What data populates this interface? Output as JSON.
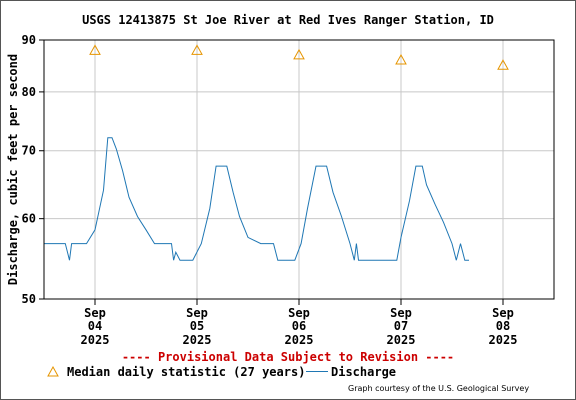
{
  "chart_data": {
    "type": "line",
    "title": "USGS 12413875 St Joe River at Red Ives Ranger Station, ID",
    "ylabel": "Discharge, cubic feet per second",
    "xlabel": "",
    "y_scale": "log",
    "ylim": [
      50,
      90
    ],
    "y_ticks": [
      "50",
      "60",
      "70",
      "80",
      "90"
    ],
    "x_range": [
      "2025-09-03T12:00",
      "2025-09-08T12:00"
    ],
    "x_ticks": [
      {
        "month": "Sep",
        "day": "04",
        "year": "2025"
      },
      {
        "month": "Sep",
        "day": "05",
        "year": "2025"
      },
      {
        "month": "Sep",
        "day": "06",
        "year": "2025"
      },
      {
        "month": "Sep",
        "day": "07",
        "year": "2025"
      },
      {
        "month": "Sep",
        "day": "08",
        "year": "2025"
      }
    ],
    "grid": true,
    "series": [
      {
        "name": "Discharge",
        "color": "#1f77b4",
        "points": [
          [
            "2025-09-03T12:00",
            56.7
          ],
          [
            "2025-09-03T15:00",
            56.7
          ],
          [
            "2025-09-03T17:00",
            56.7
          ],
          [
            "2025-09-03T18:00",
            54.6
          ],
          [
            "2025-09-03T18:30",
            56.7
          ],
          [
            "2025-09-03T22:00",
            56.7
          ],
          [
            "2025-09-04T00:00",
            58.5
          ],
          [
            "2025-09-04T02:00",
            64.0
          ],
          [
            "2025-09-04T03:00",
            72.1
          ],
          [
            "2025-09-04T04:00",
            72.1
          ],
          [
            "2025-09-04T05:00",
            70.3
          ],
          [
            "2025-09-04T06:30",
            66.9
          ],
          [
            "2025-09-04T08:00",
            63.0
          ],
          [
            "2025-09-04T10:00",
            60.3
          ],
          [
            "2025-09-04T12:00",
            58.5
          ],
          [
            "2025-09-04T14:00",
            56.7
          ],
          [
            "2025-09-04T18:00",
            56.7
          ],
          [
            "2025-09-04T18:30",
            54.6
          ],
          [
            "2025-09-04T19:00",
            55.6
          ],
          [
            "2025-09-04T20:00",
            54.6
          ],
          [
            "2025-09-04T23:00",
            54.6
          ],
          [
            "2025-09-05T01:00",
            56.7
          ],
          [
            "2025-09-05T03:00",
            61.4
          ],
          [
            "2025-09-05T04:30",
            67.6
          ],
          [
            "2025-09-05T07:00",
            67.6
          ],
          [
            "2025-09-05T08:30",
            63.7
          ],
          [
            "2025-09-05T10:00",
            60.3
          ],
          [
            "2025-09-05T12:00",
            57.5
          ],
          [
            "2025-09-05T15:00",
            56.7
          ],
          [
            "2025-09-05T18:00",
            56.7
          ],
          [
            "2025-09-05T19:00",
            54.6
          ],
          [
            "2025-09-05T21:00",
            54.6
          ],
          [
            "2025-09-05T23:00",
            54.6
          ],
          [
            "2025-09-06T00:30",
            56.7
          ],
          [
            "2025-09-06T02:00",
            61.4
          ],
          [
            "2025-09-06T04:00",
            67.6
          ],
          [
            "2025-09-06T06:30",
            67.6
          ],
          [
            "2025-09-06T08:00",
            63.7
          ],
          [
            "2025-09-06T10:00",
            60.3
          ],
          [
            "2025-09-06T12:00",
            56.7
          ],
          [
            "2025-09-06T13:00",
            54.6
          ],
          [
            "2025-09-06T13:30",
            56.7
          ],
          [
            "2025-09-06T14:00",
            54.6
          ],
          [
            "2025-09-06T22:00",
            54.6
          ],
          [
            "2025-09-06T23:00",
            54.6
          ],
          [
            "2025-09-07T00:00",
            57.5
          ],
          [
            "2025-09-07T02:00",
            62.5
          ],
          [
            "2025-09-07T03:30",
            67.6
          ],
          [
            "2025-09-07T05:00",
            67.6
          ],
          [
            "2025-09-07T06:00",
            64.8
          ],
          [
            "2025-09-07T08:00",
            62.0
          ],
          [
            "2025-09-07T10:00",
            59.5
          ],
          [
            "2025-09-07T12:00",
            56.7
          ],
          [
            "2025-09-07T13:00",
            54.6
          ],
          [
            "2025-09-07T14:00",
            56.7
          ],
          [
            "2025-09-07T15:00",
            54.6
          ],
          [
            "2025-09-07T16:00",
            54.6
          ]
        ]
      },
      {
        "name": "Median daily statistic (27 years)",
        "color": "#e69500",
        "marker": "triangle",
        "points": [
          [
            "2025-09-04T00:00",
            87.9
          ],
          [
            "2025-09-05T00:00",
            87.9
          ],
          [
            "2025-09-06T00:00",
            87.0
          ],
          [
            "2025-09-07T00:00",
            86.0
          ],
          [
            "2025-09-08T00:00",
            85.0
          ]
        ]
      }
    ]
  },
  "notice": "---- Provisional Data Subject to Revision ----",
  "legend": {
    "median_label": "Median daily statistic (27 years)",
    "discharge_label": "Discharge"
  },
  "courtesy": "Graph courtesy of the U.S. Geological Survey",
  "colors": {
    "discharge": "#1f77b4",
    "median": "#e69500",
    "notice": "#cc0000",
    "grid": "#c8c8c8"
  }
}
